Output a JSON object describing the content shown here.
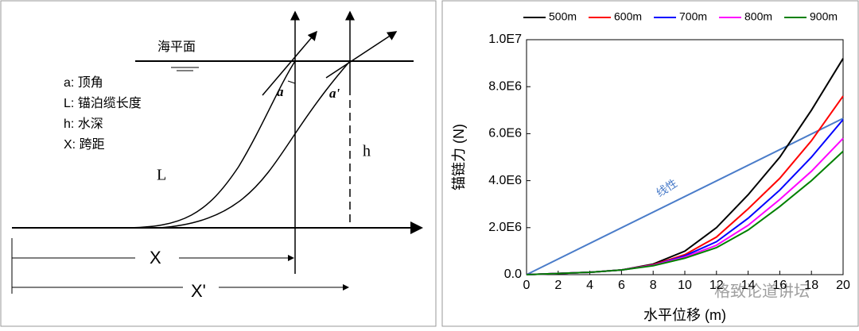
{
  "diagram": {
    "sea_level": "海平面",
    "legend": [
      "a: 顶角",
      "L: 锚泊缆长度",
      "h: 水深",
      "X: 跨距"
    ],
    "angle_a": "a",
    "angle_a2": "a'",
    "label_L": "L",
    "label_h": "h",
    "label_X": "X",
    "label_X2": "X'"
  },
  "watermark": "格致论道讲坛",
  "chart_data": {
    "type": "line",
    "x_label": "水平位移 (m)",
    "y_label": "锚链力 (N)",
    "x": [
      0,
      2,
      4,
      6,
      8,
      10,
      12,
      14,
      16,
      18,
      20
    ],
    "series": [
      {
        "name": "500m",
        "color": "#000000",
        "values": [
          0,
          50000,
          100000,
          200000,
          450000,
          1000000,
          2000000,
          3400000,
          5000000,
          7000000,
          9200000
        ]
      },
      {
        "name": "600m",
        "color": "#ff0000",
        "values": [
          0,
          50000,
          100000,
          200000,
          420000,
          850000,
          1600000,
          2800000,
          4100000,
          5700000,
          7600000
        ]
      },
      {
        "name": "700m",
        "color": "#0000ff",
        "values": [
          0,
          50000,
          100000,
          200000,
          400000,
          800000,
          1400000,
          2400000,
          3600000,
          5000000,
          6600000
        ]
      },
      {
        "name": "800m",
        "color": "#ff00ff",
        "values": [
          0,
          50000,
          100000,
          200000,
          400000,
          750000,
          1250000,
          2100000,
          3200000,
          4400000,
          5800000
        ]
      },
      {
        "name": "900m",
        "color": "#008000",
        "values": [
          0,
          50000,
          100000,
          200000,
          380000,
          700000,
          1150000,
          1900000,
          2900000,
          4000000,
          5250000
        ]
      }
    ],
    "linear": {
      "label": "线性",
      "color": "#4a7cc9",
      "x": [
        0,
        20
      ],
      "values": [
        0,
        6650000
      ]
    },
    "xlim": [
      0,
      20
    ],
    "xticks": [
      0,
      2,
      4,
      6,
      8,
      10,
      12,
      14,
      16,
      18,
      20
    ],
    "ylim": [
      0,
      10000000
    ],
    "yticks": [
      {
        "value": 0,
        "label": "0.0"
      },
      {
        "value": 2000000,
        "label": "2.0E6"
      },
      {
        "value": 4000000,
        "label": "4.0E6"
      },
      {
        "value": 6000000,
        "label": "6.0E6"
      },
      {
        "value": 8000000,
        "label": "8.0E6"
      },
      {
        "value": 10000000,
        "label": "1.0E7"
      }
    ]
  }
}
